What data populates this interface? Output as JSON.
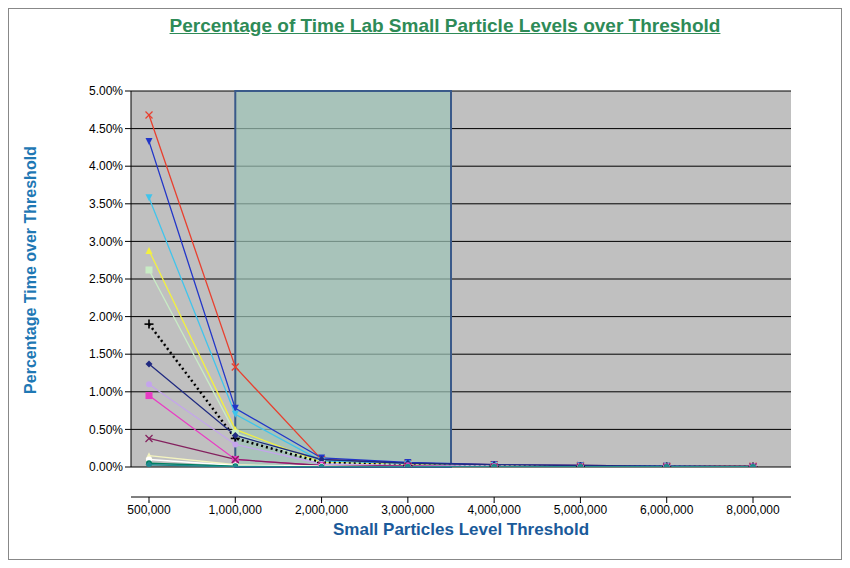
{
  "chart_data": {
    "type": "line",
    "title": "Percentage of Time Lab Small Particle Levels over Threshold",
    "xlabel": "Small Particles Level Threshold",
    "ylabel": "Percentage Time over Threshold",
    "categories": [
      "500,000",
      "1,000,000",
      "2,000,000",
      "3,000,000",
      "4,000,000",
      "5,000,000",
      "6,000,000",
      "8,000,000"
    ],
    "series": [
      {
        "color": "#e8402f",
        "marker": "x",
        "line_style": "solid",
        "values": [
          4.68,
          1.33,
          0.1,
          0.05,
          0.03,
          0.02,
          0.01,
          0.01
        ]
      },
      {
        "color": "#2236c8",
        "marker": "triangle-down",
        "line_style": "solid",
        "values": [
          4.33,
          0.78,
          0.12,
          0.06,
          0.03,
          0.02,
          0.01,
          0.0
        ]
      },
      {
        "color": "#40c4ec",
        "marker": "triangle-down",
        "line_style": "solid",
        "values": [
          3.58,
          0.7,
          0.08,
          0.04,
          0.02,
          0.01,
          0.01,
          0.0
        ]
      },
      {
        "color": "#f2f040",
        "marker": "triangle",
        "line_style": "solid",
        "values": [
          2.88,
          0.5,
          0.06,
          0.03,
          0.02,
          0.01,
          0.0,
          0.0
        ]
      },
      {
        "color": "#c8ecc4",
        "marker": "square",
        "line_style": "solid",
        "values": [
          2.62,
          0.45,
          0.05,
          0.02,
          0.01,
          0.01,
          0.0,
          0.0
        ]
      },
      {
        "color": "#000000",
        "marker": "plus",
        "line_style": "dotted",
        "values": [
          1.9,
          0.38,
          0.06,
          0.02,
          0.01,
          0.0,
          0.0,
          0.0
        ]
      },
      {
        "color": "#202a80",
        "marker": "diamond",
        "line_style": "solid",
        "values": [
          1.37,
          0.42,
          0.1,
          0.05,
          0.03,
          0.02,
          0.01,
          0.01
        ]
      },
      {
        "color": "#c4a4ec",
        "marker": "circle",
        "line_style": "solid",
        "values": [
          1.1,
          0.3,
          0.04,
          0.02,
          0.01,
          0.0,
          0.0,
          0.0
        ]
      },
      {
        "color": "#e83cc4",
        "marker": "square",
        "line_style": "solid",
        "values": [
          0.95,
          0.1,
          0.02,
          0.01,
          0.0,
          0.0,
          0.0,
          0.0
        ]
      },
      {
        "color": "#84205e",
        "marker": "x",
        "line_style": "solid",
        "values": [
          0.38,
          0.1,
          0.02,
          0.01,
          0.0,
          0.0,
          0.0,
          0.0
        ]
      },
      {
        "color": "#f4f4c0",
        "marker": "triangle",
        "line_style": "solid",
        "values": [
          0.15,
          0.03,
          0.01,
          0.0,
          0.0,
          0.0,
          0.0,
          0.0
        ]
      },
      {
        "color": "#ffffff",
        "marker": "circle",
        "line_style": "solid",
        "values": [
          0.1,
          0.02,
          0.01,
          0.0,
          0.0,
          0.0,
          0.0,
          0.0
        ]
      },
      {
        "color": "#008060",
        "marker": "circle",
        "line_style": "solid",
        "values": [
          0.05,
          0.01,
          0.0,
          0.0,
          0.0,
          0.0,
          0.0,
          0.0
        ]
      },
      {
        "color": "#208890",
        "marker": "diamond",
        "line_style": "solid",
        "values": [
          0.03,
          0.0,
          0.0,
          0.0,
          0.0,
          0.0,
          0.0,
          0.0
        ]
      }
    ],
    "shaded_range": [
      1000000,
      3500000
    ],
    "ylim": [
      0,
      5
    ],
    "yticks": [
      {
        "value": 0,
        "label": "0.00%"
      },
      {
        "value": 0.5,
        "label": "0.50%"
      },
      {
        "value": 1,
        "label": "1.00%"
      },
      {
        "value": 1.5,
        "label": "1.50%"
      },
      {
        "value": 2,
        "label": "2.00%"
      },
      {
        "value": 2.5,
        "label": "2.50%"
      },
      {
        "value": 3,
        "label": "3.00%"
      },
      {
        "value": 3.5,
        "label": "3.50%"
      },
      {
        "value": 4,
        "label": "4.00%"
      },
      {
        "value": 4.5,
        "label": "4.50%"
      },
      {
        "value": 5,
        "label": "5.00%"
      }
    ],
    "grid": true
  }
}
